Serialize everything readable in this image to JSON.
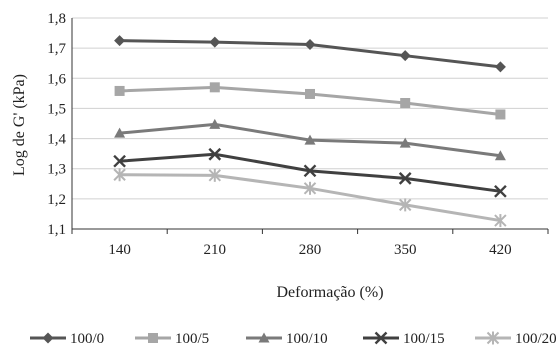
{
  "chart_data": {
    "type": "line",
    "title": "",
    "xlabel": "Deformação (%)",
    "ylabel": "Log de G' (kPa)",
    "categories": [
      "140",
      "210",
      "280",
      "350",
      "420"
    ],
    "y_ticks": [
      "1,1",
      "1,2",
      "1,3",
      "1,4",
      "1,5",
      "1,6",
      "1,7",
      "1,8"
    ],
    "ylim": [
      1.1,
      1.8
    ],
    "grid": "horizontal",
    "legend_position": "bottom",
    "series": [
      {
        "name": "100/0",
        "marker": "diamond",
        "color": "#555555",
        "values": [
          1.725,
          1.72,
          1.712,
          1.675,
          1.638
        ]
      },
      {
        "name": "100/5",
        "marker": "square",
        "color": "#a6a6a6",
        "values": [
          1.558,
          1.57,
          1.548,
          1.518,
          1.48
        ]
      },
      {
        "name": "100/10",
        "marker": "triangle",
        "color": "#7a7a7a",
        "values": [
          1.418,
          1.447,
          1.395,
          1.385,
          1.343
        ]
      },
      {
        "name": "100/15",
        "marker": "x",
        "color": "#404040",
        "values": [
          1.325,
          1.348,
          1.293,
          1.268,
          1.225
        ]
      },
      {
        "name": "100/20",
        "marker": "star",
        "color": "#b5b5b5",
        "values": [
          1.28,
          1.278,
          1.235,
          1.18,
          1.128
        ]
      }
    ]
  }
}
